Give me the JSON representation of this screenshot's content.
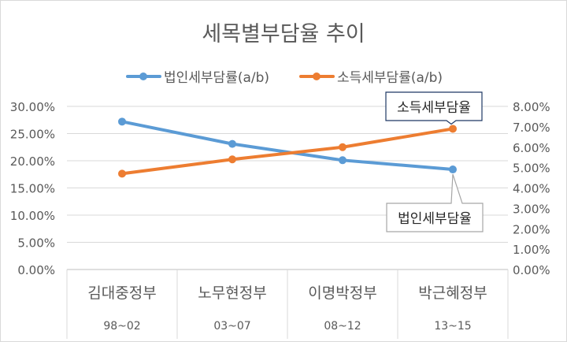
{
  "chart_data": {
    "type": "line",
    "title": "세목별부담율 추이",
    "categories": [
      "김대중정부",
      "노무현정부",
      "이명박정부",
      "박근혜정부"
    ],
    "sub_categories": [
      "98~02",
      "03~07",
      "08~12",
      "13~15"
    ],
    "series": [
      {
        "name": "법인세부담률(a/b)",
        "axis": "left",
        "color": "#5B9BD5",
        "values": [
          0.272,
          0.231,
          0.201,
          0.184
        ],
        "callout": "법인세부담율"
      },
      {
        "name": "소득세부담률(a/b)",
        "axis": "right",
        "color": "#ED7D31",
        "values": [
          0.047,
          0.054,
          0.06,
          0.069
        ],
        "callout": "소득세부담율"
      }
    ],
    "left_axis": {
      "min": 0,
      "max": 0.3,
      "ticks": [
        "0.00%",
        "5.00%",
        "10.00%",
        "15.00%",
        "20.00%",
        "25.00%",
        "30.00%"
      ]
    },
    "right_axis": {
      "min": 0,
      "max": 0.08,
      "ticks": [
        "0.00%",
        "1.00%",
        "2.00%",
        "3.00%",
        "4.00%",
        "5.00%",
        "6.00%",
        "7.00%",
        "8.00%"
      ]
    },
    "grid": true,
    "legend": "top"
  }
}
